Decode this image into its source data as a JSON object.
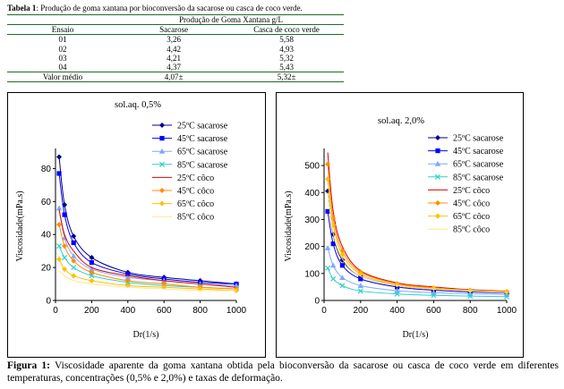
{
  "table": {
    "caption_label": "Tabela 1",
    "caption_text": ": Produção de goma xantana por bioconversão da sacarose ou casca de coco verde.",
    "group_header": "Produção de Goma Xantana g/L",
    "headers": [
      "Ensaio",
      "Sacarose",
      "Casca de coco verde"
    ],
    "rows": [
      [
        "01",
        "3,26",
        "5,58"
      ],
      [
        "02",
        "4,42",
        "4,93"
      ],
      [
        "03",
        "4,21",
        "5,32"
      ],
      [
        "04",
        "4,37",
        "5,43"
      ]
    ],
    "footer": [
      "Valor médio",
      "4,07±",
      "5,32±"
    ]
  },
  "figure": {
    "caption_label": "Figura 1:",
    "caption_text": " Viscosidade aparente da goma xantana obtida pela bioconversão da sacarose ou casca de coco verde em diferentes temperaturas, concentrações (0,5% e 2,0%) e taxas de deformação."
  },
  "chart_data": [
    {
      "type": "line",
      "title": "sol.aq. 0,5%",
      "xlabel": "Dr(1/s)",
      "ylabel": "Viscosidade(mPa.s)",
      "xlim": [
        0,
        1000
      ],
      "ylim": [
        0,
        90
      ],
      "xticks": [
        0,
        200,
        400,
        600,
        800,
        1000
      ],
      "yticks": [
        0,
        20,
        40,
        60,
        80
      ],
      "legend_position": "top-right",
      "x": [
        20,
        50,
        100,
        200,
        400,
        600,
        800,
        1000
      ],
      "series": [
        {
          "name": "25ºC sacarose",
          "color": "#00008b",
          "marker": "diamond",
          "values": [
            87,
            58,
            39,
            26,
            17,
            14,
            12,
            10
          ]
        },
        {
          "name": "45ºC sacarose",
          "color": "#0000ff",
          "marker": "square",
          "values": [
            77,
            52,
            35,
            23,
            16,
            13,
            11,
            10
          ]
        },
        {
          "name": "65ºC sacarose",
          "color": "#7fa7ff",
          "marker": "triangle",
          "values": [
            56,
            38,
            27,
            19,
            14,
            12,
            10,
            9
          ]
        },
        {
          "name": "85ºC sacarose",
          "color": "#2ecfcf",
          "marker": "x",
          "values": [
            33,
            26,
            20,
            15,
            11,
            9,
            8,
            7
          ]
        },
        {
          "name": "25ºC côco",
          "color": "#e00000",
          "marker": "none",
          "values": [
            55,
            40,
            30,
            20,
            15,
            12,
            10,
            8
          ]
        },
        {
          "name": "45ºC côco",
          "color": "#ff8c00",
          "marker": "diamond",
          "values": [
            46,
            33,
            24,
            17,
            12,
            10,
            8,
            7
          ]
        },
        {
          "name": "65ºC côco",
          "color": "#ffc000",
          "marker": "diamond",
          "values": [
            25,
            19,
            15,
            12,
            9,
            8,
            7,
            6
          ]
        },
        {
          "name": "85ºC côco",
          "color": "#ffe88a",
          "marker": "none",
          "values": [
            18,
            15,
            12,
            10,
            8,
            7,
            6,
            6
          ]
        }
      ]
    },
    {
      "type": "line",
      "title": "sol.aq. 2,0%",
      "xlabel": "Dr(1/s)",
      "ylabel": "Viscosidade(mPa.s)",
      "xlim": [
        0,
        1000
      ],
      "ylim": [
        0,
        550
      ],
      "xticks": [
        0,
        200,
        400,
        600,
        800,
        1000
      ],
      "yticks": [
        0,
        100,
        200,
        300,
        400,
        500
      ],
      "legend_position": "top-right",
      "x": [
        20,
        50,
        100,
        200,
        400,
        600,
        800,
        1000
      ],
      "series": [
        {
          "name": "25ºC sacarose",
          "color": "#00008b",
          "marker": "diamond",
          "values": [
            405,
            245,
            150,
            90,
            55,
            42,
            35,
            30
          ]
        },
        {
          "name": "45ºC sacarose",
          "color": "#0000ff",
          "marker": "square",
          "values": [
            330,
            210,
            130,
            80,
            50,
            38,
            32,
            28
          ]
        },
        {
          "name": "65ºC sacarose",
          "color": "#7fa7ff",
          "marker": "triangle",
          "values": [
            195,
            130,
            85,
            55,
            36,
            29,
            25,
            22
          ]
        },
        {
          "name": "85ºC sacarose",
          "color": "#2ecfcf",
          "marker": "x",
          "values": [
            120,
            80,
            55,
            35,
            24,
            19,
            16,
            14
          ]
        },
        {
          "name": "25ºC côco",
          "color": "#e00000",
          "marker": "none",
          "values": [
            548,
            330,
            200,
            110,
            65,
            50,
            40,
            34
          ]
        },
        {
          "name": "45ºC côco",
          "color": "#ff8c00",
          "marker": "diamond",
          "values": [
            505,
            305,
            185,
            105,
            62,
            47,
            38,
            33
          ]
        },
        {
          "name": "65ºC côco",
          "color": "#ffc000",
          "marker": "diamond",
          "values": [
            450,
            280,
            170,
            98,
            58,
            45,
            37,
            31
          ]
        },
        {
          "name": "85ºC côco",
          "color": "#ffe88a",
          "marker": "none",
          "values": [
            400,
            250,
            155,
            90,
            55,
            42,
            35,
            30
          ]
        }
      ]
    }
  ]
}
